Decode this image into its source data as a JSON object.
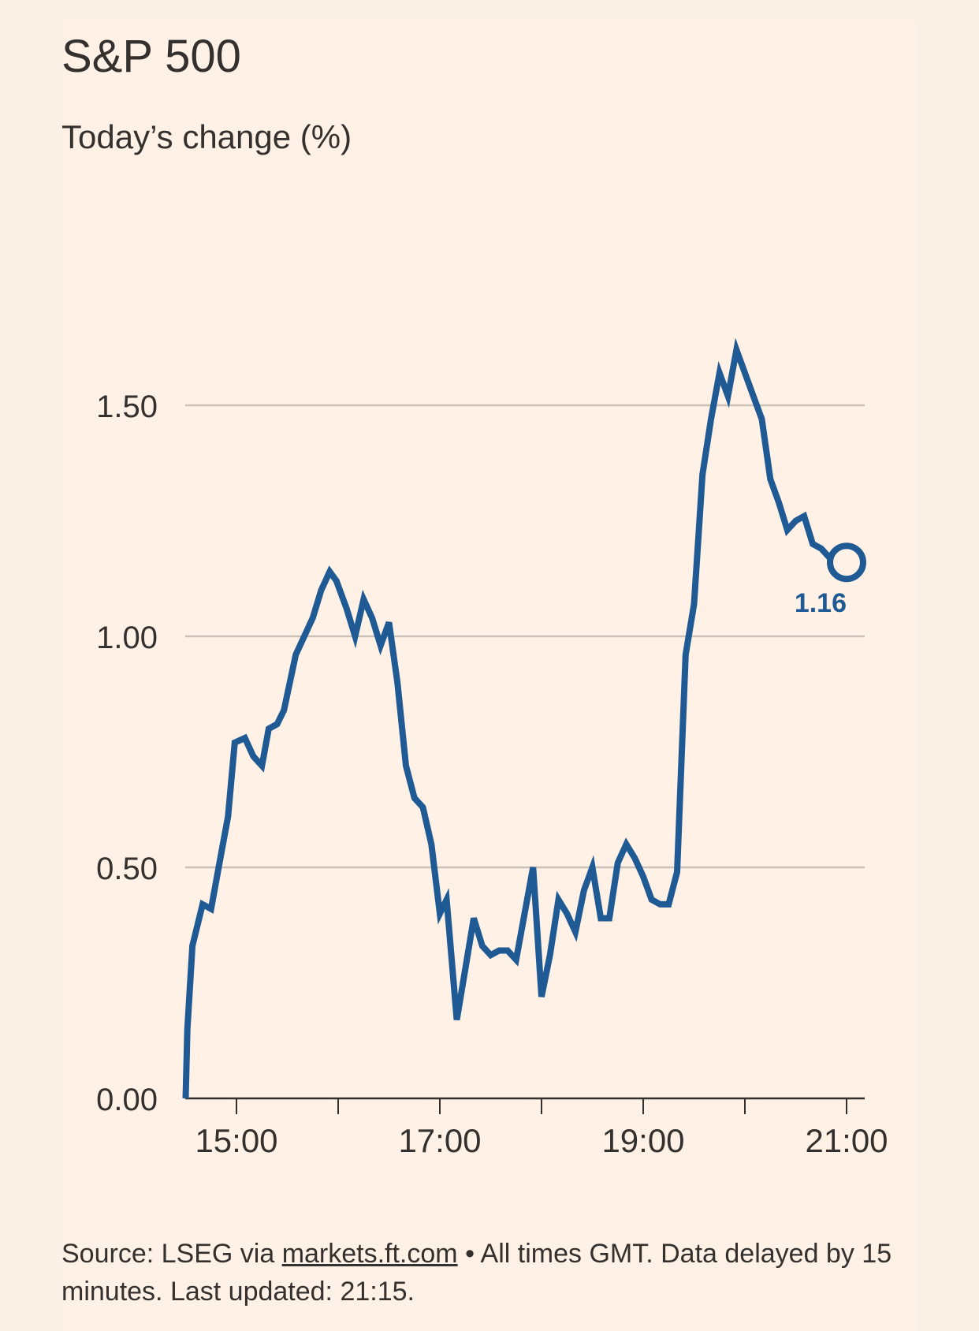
{
  "title": "S&P 500",
  "subtitle": "Today’s change (%)",
  "colors": {
    "background": "#fff1e5",
    "line": "#1f5a94",
    "grid": "#ccc1b7",
    "text": "#33302e"
  },
  "footer": {
    "source_prefix": "Source: LSEG via ",
    "source_link": "markets.ft.com",
    "source_suffix": " • All times GMT. Data delayed by 15 minutes. Last updated: 21:15."
  },
  "chart_data": {
    "type": "line",
    "title": "S&P 500",
    "subtitle": "Today’s change (%)",
    "xlabel": "",
    "ylabel": "",
    "x_ticks": [
      "15:00",
      "17:00",
      "19:00",
      "21:00"
    ],
    "x_minor_ticks": [
      "15:00",
      "16:00",
      "17:00",
      "18:00",
      "19:00",
      "20:00",
      "21:00"
    ],
    "y_ticks": [
      "0.00",
      "0.50",
      "1.00",
      "1.50"
    ],
    "ylim": [
      0,
      1.72
    ],
    "xlim_hours": [
      14.5,
      21.2
    ],
    "grid": true,
    "last_value_label": "1.16",
    "series": [
      {
        "x": [
          14.5,
          14.517,
          14.567,
          14.667,
          14.75,
          14.833,
          14.917,
          14.983,
          15.083,
          15.167,
          15.25,
          15.317,
          15.4,
          15.467,
          15.583,
          15.667,
          15.75,
          15.833,
          15.917,
          15.983,
          16.083,
          16.167,
          16.25,
          16.333,
          16.417,
          16.5,
          16.583,
          16.667,
          16.75,
          16.833,
          16.917,
          17.0,
          17.067,
          17.167,
          17.25,
          17.333,
          17.417,
          17.5,
          17.583,
          17.667,
          17.75,
          17.833,
          17.917,
          18.0,
          18.083,
          18.167,
          18.25,
          18.333,
          18.417,
          18.5,
          18.583,
          18.667,
          18.75,
          18.833,
          18.917,
          19.0,
          19.083,
          19.167,
          19.25,
          19.333,
          19.417,
          19.5,
          19.583,
          19.667,
          19.75,
          19.833,
          19.917,
          20.0,
          20.083,
          20.167,
          20.25,
          20.333,
          20.417,
          20.5,
          20.583,
          20.667,
          20.75,
          20.833,
          20.917,
          21.0
        ],
        "y": [
          0.0,
          0.15,
          0.33,
          0.42,
          0.41,
          0.51,
          0.61,
          0.77,
          0.78,
          0.74,
          0.72,
          0.8,
          0.81,
          0.84,
          0.96,
          1.0,
          1.04,
          1.1,
          1.14,
          1.12,
          1.06,
          1.0,
          1.08,
          1.04,
          0.98,
          1.03,
          0.9,
          0.72,
          0.65,
          0.63,
          0.55,
          0.4,
          0.43,
          0.17,
          0.28,
          0.39,
          0.33,
          0.31,
          0.32,
          0.32,
          0.3,
          0.4,
          0.5,
          0.22,
          0.31,
          0.43,
          0.4,
          0.36,
          0.45,
          0.5,
          0.39,
          0.39,
          0.51,
          0.55,
          0.52,
          0.48,
          0.43,
          0.42,
          0.42,
          0.49,
          0.96,
          1.07,
          1.35,
          1.47,
          1.57,
          1.52,
          1.62,
          1.57,
          1.52,
          1.47,
          1.34,
          1.29,
          1.23,
          1.25,
          1.26,
          1.2,
          1.19,
          1.17,
          1.16,
          1.16
        ]
      }
    ]
  }
}
